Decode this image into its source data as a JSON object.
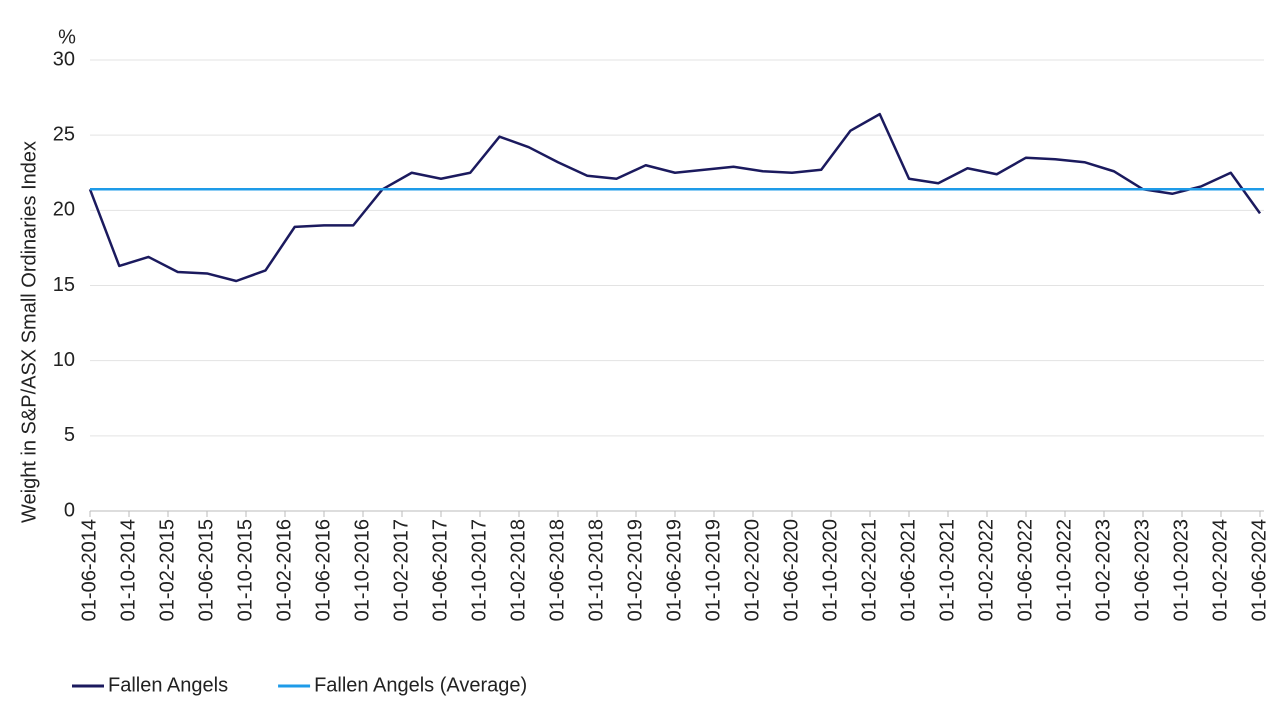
{
  "chart_data": {
    "type": "line",
    "y_unit": "%",
    "y_label": "Weight in S&P/ASX Small Ordinaries Index",
    "x": [
      "01-06-2014",
      "01-09-2014",
      "01-12-2014",
      "01-03-2015",
      "01-06-2015",
      "01-09-2015",
      "01-12-2015",
      "01-03-2016",
      "01-06-2016",
      "01-09-2016",
      "01-12-2016",
      "01-03-2017",
      "01-06-2017",
      "01-09-2017",
      "01-12-2017",
      "01-03-2018",
      "01-06-2018",
      "01-09-2018",
      "01-12-2018",
      "01-03-2019",
      "01-06-2019",
      "01-09-2019",
      "01-12-2019",
      "01-03-2020",
      "01-06-2020",
      "01-09-2020",
      "01-12-2020",
      "01-03-2021",
      "01-06-2021",
      "01-09-2021",
      "01-12-2021",
      "01-03-2022",
      "01-06-2022",
      "01-09-2022",
      "01-12-2022",
      "01-03-2023",
      "01-06-2023",
      "01-09-2023",
      "01-12-2023",
      "01-03-2024",
      "01-06-2024"
    ],
    "xticks": [
      "01-06-2014",
      "01-10-2014",
      "01-02-2015",
      "01-06-2015",
      "01-10-2015",
      "01-02-2016",
      "01-06-2016",
      "01-10-2016",
      "01-02-2017",
      "01-06-2017",
      "01-10-2017",
      "01-02-2018",
      "01-06-2018",
      "01-10-2018",
      "01-02-2019",
      "01-06-2019",
      "01-10-2019",
      "01-02-2020",
      "01-06-2020",
      "01-10-2020",
      "01-02-2021",
      "01-06-2021",
      "01-10-2021",
      "01-02-2022",
      "01-06-2022",
      "01-10-2022",
      "01-02-2023",
      "01-06-2023",
      "01-10-2023",
      "01-02-2024",
      "01-06-2024"
    ],
    "series": [
      {
        "name": "Fallen Angels",
        "color": "#1b1a5e",
        "values": [
          21.4,
          16.3,
          16.9,
          15.9,
          15.8,
          15.3,
          16.0,
          18.9,
          19.0,
          19.0,
          21.4,
          22.5,
          22.1,
          22.5,
          24.9,
          24.2,
          23.2,
          22.3,
          22.1,
          23.0,
          22.5,
          22.7,
          22.9,
          22.6,
          22.5,
          22.7,
          25.3,
          26.4,
          22.1,
          21.8,
          22.8,
          22.4,
          23.5,
          23.4,
          23.2,
          22.6,
          21.4,
          21.1,
          21.6,
          22.5,
          19.8
        ]
      },
      {
        "name": "Fallen Angels (Average)",
        "color": "#1e9be8",
        "value": 21.4
      }
    ],
    "ylim": [
      0,
      30
    ],
    "yticks": [
      0,
      5,
      10,
      15,
      20,
      25,
      30
    ],
    "grid": true
  }
}
